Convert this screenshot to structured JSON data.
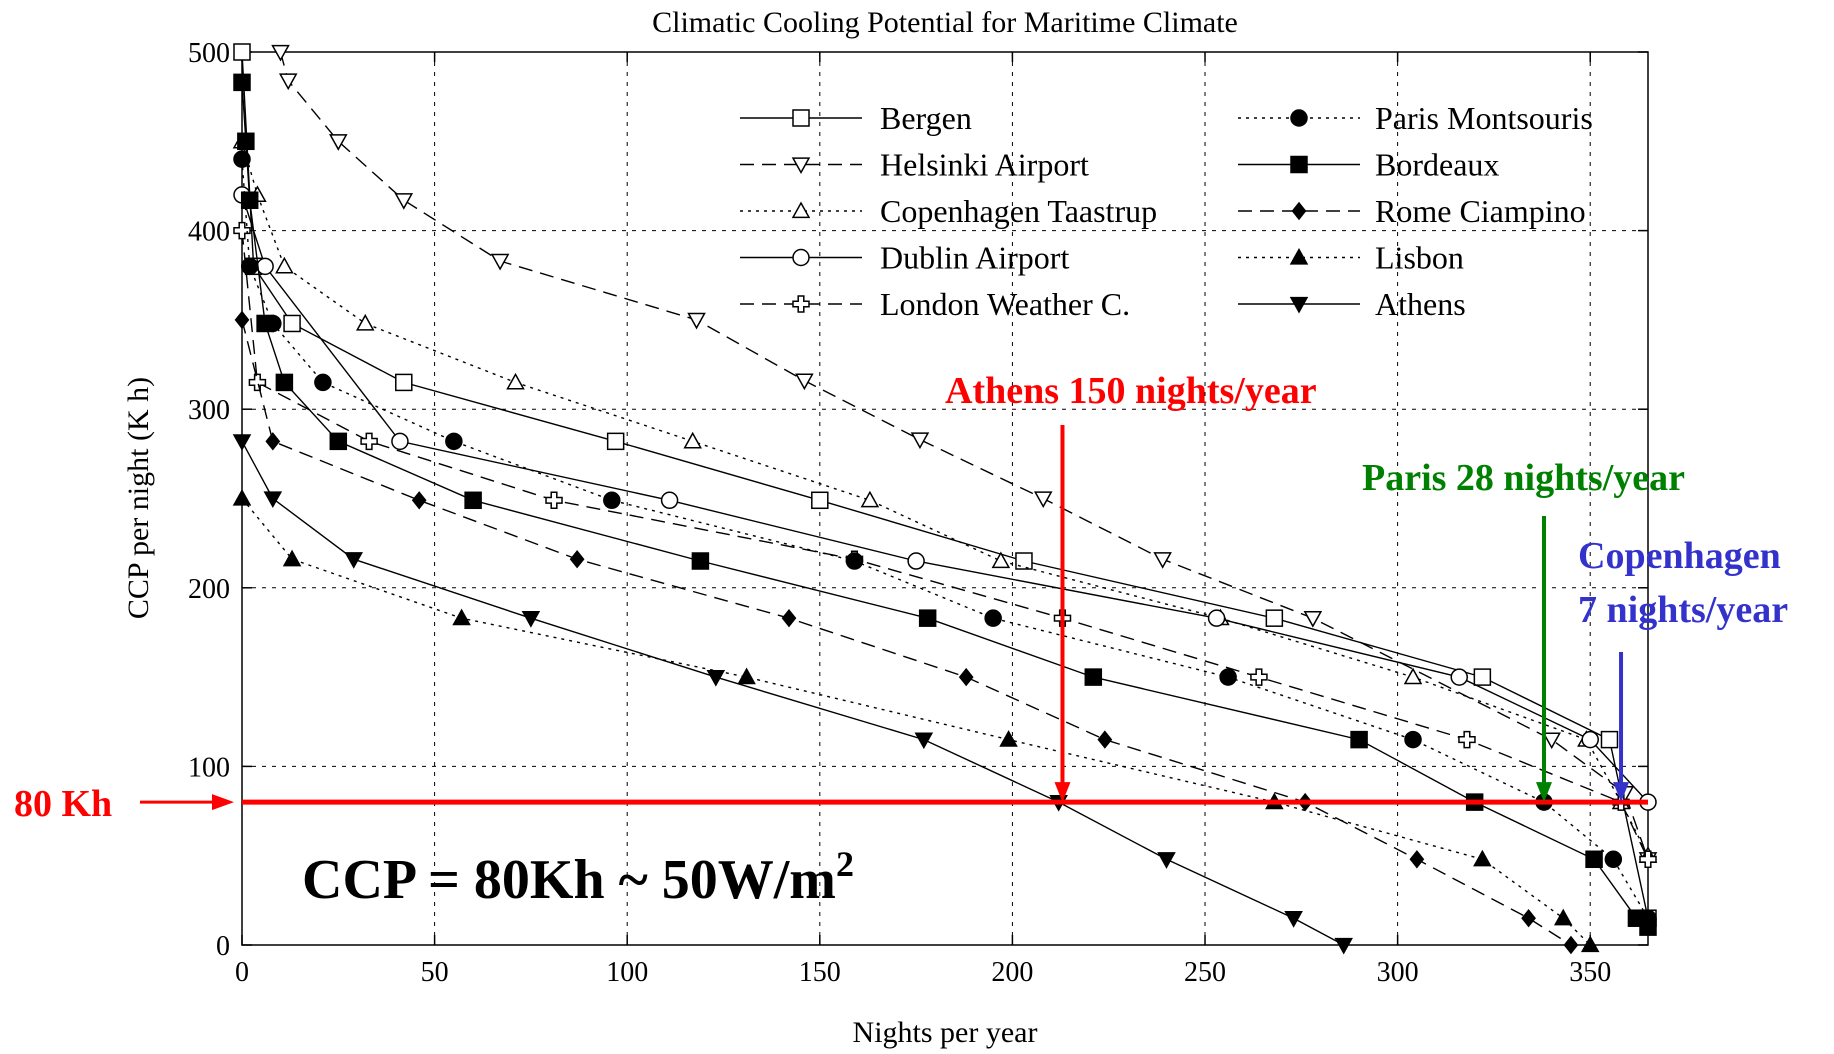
{
  "chart_data": {
    "type": "line",
    "title": "Climatic Cooling Potential for Maritime Climate",
    "xlabel": "Nights per year",
    "ylabel": "CCP per night (K h)",
    "xlim": [
      0,
      365
    ],
    "ylim": [
      0,
      500
    ],
    "xticks": [
      0,
      50,
      100,
      150,
      200,
      250,
      300,
      350
    ],
    "yticks": [
      0,
      100,
      200,
      300,
      400,
      500
    ],
    "grid": true,
    "legend_position": "top-right",
    "series": [
      {
        "name": "Bergen",
        "style": "solid",
        "marker": "square-open",
        "x": [
          0,
          3,
          13,
          42,
          97,
          150,
          203,
          268,
          322,
          355,
          365
        ],
        "y": [
          500,
          380,
          348,
          315,
          282,
          249,
          215,
          183,
          150,
          115,
          15
        ]
      },
      {
        "name": "Helsinki Airport",
        "style": "dashed",
        "marker": "triangle-down-open",
        "x": [
          10,
          12,
          25,
          42,
          67,
          118,
          146,
          176,
          208,
          239,
          278,
          340,
          359,
          365
        ],
        "y": [
          500,
          484,
          450,
          417,
          383,
          350,
          316,
          283,
          250,
          216,
          183,
          115,
          85,
          48
        ]
      },
      {
        "name": "Copenhagen Taastrup",
        "style": "dotted",
        "marker": "triangle-up-open",
        "x": [
          0,
          4,
          11,
          32,
          71,
          117,
          163,
          197,
          254,
          304,
          349,
          358,
          365
        ],
        "y": [
          450,
          420,
          380,
          348,
          315,
          282,
          249,
          215,
          183,
          150,
          115,
          80,
          50
        ]
      },
      {
        "name": "Dublin Airport",
        "style": "solid",
        "marker": "circle-open",
        "x": [
          0,
          6,
          41,
          111,
          175,
          253,
          316,
          350,
          365
        ],
        "y": [
          420,
          380,
          282,
          249,
          215,
          183,
          150,
          115,
          80
        ]
      },
      {
        "name": "London Weather C.",
        "style": "dashed",
        "marker": "cross-open",
        "x": [
          0,
          4,
          33,
          81,
          159,
          213,
          264,
          318,
          358,
          365
        ],
        "y": [
          400,
          315,
          282,
          249,
          216,
          183,
          150,
          115,
          80,
          48
        ]
      },
      {
        "name": "Paris Montsouris",
        "style": "dotted",
        "marker": "circle-filled",
        "x": [
          0,
          2,
          8,
          21,
          55,
          96,
          159,
          195,
          256,
          304,
          338,
          356,
          365
        ],
        "y": [
          440,
          380,
          348,
          315,
          282,
          249,
          215,
          183,
          150,
          115,
          80,
          48,
          15
        ]
      },
      {
        "name": "Bordeaux",
        "style": "solid",
        "marker": "square-filled",
        "x": [
          0,
          1,
          2,
          6,
          11,
          25,
          60,
          119,
          178,
          221,
          290,
          320,
          351,
          362,
          365
        ],
        "y": [
          483,
          450,
          417,
          348,
          315,
          282,
          249,
          215,
          183,
          150,
          115,
          80,
          48,
          15,
          10
        ]
      },
      {
        "name": "Rome Ciampino",
        "style": "dashed",
        "marker": "diamond-filled",
        "x": [
          0,
          8,
          46,
          87,
          142,
          188,
          224,
          276,
          305,
          334,
          345
        ],
        "y": [
          350,
          282,
          249,
          216,
          183,
          150,
          115,
          80,
          48,
          15,
          0
        ]
      },
      {
        "name": "Lisbon",
        "style": "dotted",
        "marker": "triangle-up-filled",
        "x": [
          0,
          13,
          57,
          131,
          199,
          268,
          322,
          343,
          350
        ],
        "y": [
          250,
          216,
          183,
          150,
          115,
          80,
          48,
          15,
          0
        ]
      },
      {
        "name": "Athens",
        "style": "solid",
        "marker": "triangle-down-filled",
        "x": [
          0,
          8,
          29,
          75,
          123,
          177,
          212,
          240,
          273,
          286
        ],
        "y": [
          282,
          250,
          216,
          183,
          150,
          115,
          80,
          48,
          15,
          0
        ]
      }
    ],
    "annotations": {
      "threshold_label": "80 Kh",
      "threshold_value": 80,
      "threshold_color": "#ff0000",
      "athens_label": "Athens 150 nights/year",
      "athens_x": 213,
      "athens_color": "#ff0000",
      "paris_label": "Paris 28 nights/year",
      "paris_x": 338,
      "paris_color": "#008000",
      "copenhagen_label_1": "Copenhagen",
      "copenhagen_label_2": "7 nights/year",
      "copenhagen_x": 358,
      "copenhagen_color": "#3333cc",
      "formula_main": "CCP = 80Kh ~ 50W/m",
      "formula_sup": "2"
    }
  }
}
